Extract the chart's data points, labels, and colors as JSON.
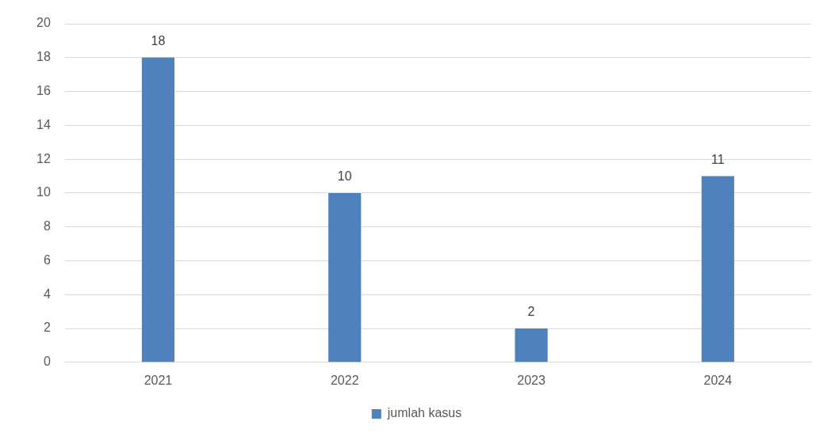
{
  "chart_data": {
    "type": "bar",
    "categories": [
      "2021",
      "2022",
      "2023",
      "2024"
    ],
    "series": [
      {
        "name": "jumlah kasus",
        "color": "#4f81bd",
        "values": [
          18,
          10,
          2,
          11
        ]
      }
    ],
    "ylim": [
      0,
      20
    ],
    "yticks": [
      0,
      2,
      4,
      6,
      8,
      10,
      12,
      14,
      16,
      18,
      20
    ],
    "grid": "y",
    "legend": "bottom",
    "data_labels": true
  }
}
